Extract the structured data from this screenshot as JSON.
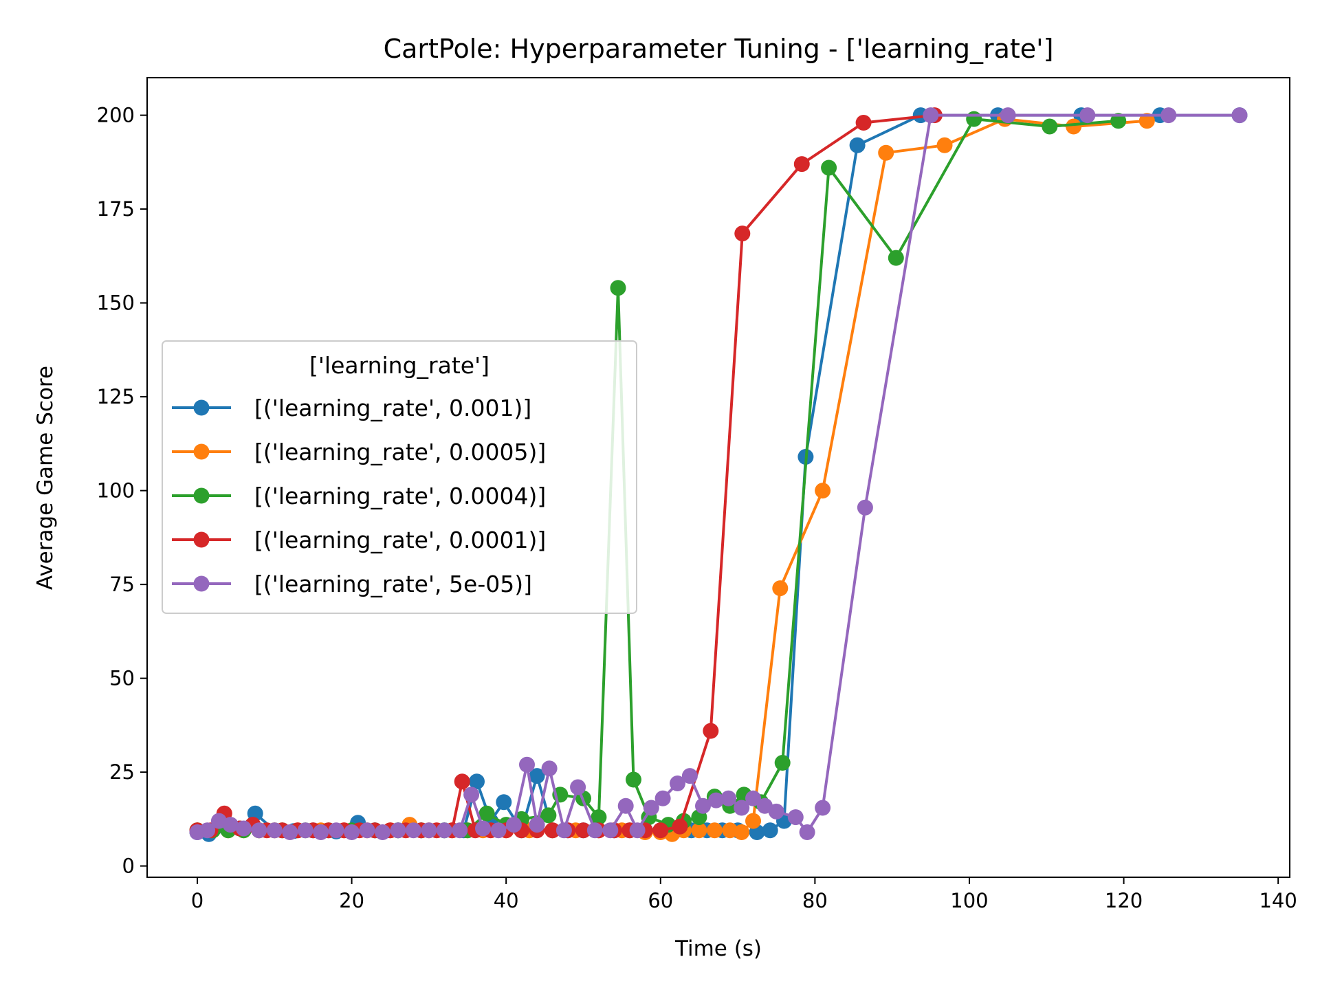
{
  "chart_data": {
    "type": "line",
    "title": "CartPole: Hyperparameter Tuning - ['learning_rate']",
    "xlabel": "Time (s)",
    "ylabel": "Average Game Score",
    "xlim": [
      -6.5,
      141.5
    ],
    "ylim": [
      -3,
      210
    ],
    "xticks": [
      0,
      20,
      40,
      60,
      80,
      100,
      120,
      140
    ],
    "yticks": [
      0,
      25,
      50,
      75,
      100,
      125,
      150,
      175,
      200
    ],
    "grid": false,
    "legend": {
      "title": "['learning_rate']",
      "placement": "center-left"
    },
    "series": [
      {
        "name": "[('learning_rate', 0.001)]",
        "color": "#1f77b4",
        "x": [
          0,
          1.5,
          3.5,
          5.5,
          7.5,
          10,
          12.5,
          15,
          18,
          20.8,
          23,
          26,
          29,
          32,
          34.5,
          36.2,
          38,
          39.7,
          42,
          44,
          46,
          48,
          50,
          52,
          54,
          56,
          58,
          60,
          62,
          64,
          66,
          68,
          70,
          72.5,
          74.2,
          76,
          78.8,
          85.5,
          93.7,
          103.7,
          114.5,
          124.7,
          135
        ],
        "y": [
          9,
          8.5,
          10.5,
          10,
          14,
          9.5,
          9.3,
          9.5,
          9.2,
          11.5,
          9.5,
          9.5,
          9.5,
          9.5,
          9.5,
          22.5,
          12,
          17,
          9.5,
          24,
          9.5,
          9.5,
          9.5,
          9.5,
          9.5,
          9.5,
          9.5,
          9.5,
          9.5,
          9.5,
          9.5,
          9.5,
          9.5,
          9,
          9.5,
          12,
          109,
          192,
          200,
          200,
          200,
          200,
          200
        ]
      },
      {
        "name": "[('learning_rate', 0.0005)]",
        "color": "#ff7f0e",
        "x": [
          0,
          2,
          4,
          6,
          8,
          10,
          13,
          16,
          19,
          22,
          25,
          27.5,
          30,
          33,
          35,
          37,
          40,
          43,
          46,
          49,
          52,
          55,
          58,
          60,
          61.5,
          63,
          65,
          67,
          69,
          70.5,
          72,
          75.5,
          81,
          89.2,
          96.8,
          104.6,
          113.5,
          123
        ],
        "y": [
          9.5,
          9.5,
          9.5,
          9.5,
          9.5,
          9.5,
          9.5,
          9.5,
          9.5,
          9.5,
          9.5,
          11,
          9.5,
          9.5,
          9.5,
          9.5,
          9.5,
          9.5,
          9.5,
          9.5,
          9.5,
          9.5,
          9,
          9,
          8.5,
          9.5,
          9.5,
          9.5,
          9.5,
          9,
          12,
          74,
          100,
          190,
          192,
          199,
          197,
          198.5
        ]
      },
      {
        "name": "[('learning_rate', 0.0004)]",
        "color": "#2ca02c",
        "x": [
          0,
          2,
          4,
          6,
          8,
          11,
          14,
          17,
          20,
          23,
          26,
          29,
          32,
          35,
          37.5,
          40,
          42,
          45.5,
          47,
          50,
          52,
          54.5,
          56.5,
          58.5,
          61,
          63,
          65,
          67,
          69,
          70.8,
          73,
          75.8,
          81.8,
          90.5,
          100.6,
          110.4,
          119.3
        ],
        "y": [
          9.5,
          9.5,
          9.5,
          9.5,
          9.5,
          9.5,
          9.5,
          9.5,
          9.5,
          9.5,
          9.5,
          9.5,
          9.5,
          9.5,
          14,
          11,
          12.5,
          13.5,
          19,
          18,
          13,
          154,
          23,
          13,
          11,
          12,
          13,
          18.5,
          16,
          19,
          17,
          27.5,
          186,
          162,
          199,
          197,
          198.5
        ]
      },
      {
        "name": "[('learning_rate', 0.0001)]",
        "color": "#d62728",
        "x": [
          0,
          1.7,
          3.5,
          5.5,
          7.2,
          9,
          11,
          13,
          15,
          17,
          19,
          21,
          23,
          25,
          27,
          29,
          31,
          33,
          34.3,
          36,
          38,
          40,
          42,
          44,
          46,
          48,
          50,
          52,
          54,
          56,
          58,
          60,
          62.5,
          66.5,
          70.6,
          78.3,
          86.3,
          95.5
        ],
        "y": [
          9.5,
          9.5,
          14,
          10,
          11,
          9.5,
          9.5,
          9.5,
          9.5,
          9.5,
          9.5,
          9.5,
          9.5,
          9.5,
          9.5,
          9.5,
          9.5,
          9.5,
          22.5,
          9.5,
          9.5,
          9.5,
          9.5,
          9.5,
          9.5,
          9.5,
          9.5,
          9.5,
          9.5,
          9.5,
          9.5,
          9.5,
          10.5,
          36,
          168.5,
          187,
          198,
          200
        ]
      },
      {
        "name": "[('learning_rate', 5e-05)]",
        "color": "#9467bd",
        "x": [
          0,
          1.3,
          2.8,
          4.3,
          6,
          8,
          10,
          12,
          14,
          16,
          18,
          20,
          22,
          24,
          26,
          28,
          30,
          32,
          34,
          35.5,
          37,
          39,
          41,
          42.7,
          44,
          45.6,
          47.5,
          49.3,
          51.5,
          53.5,
          55.5,
          57,
          58.8,
          60.3,
          62.2,
          63.8,
          65.5,
          67.2,
          68.8,
          70.5,
          72,
          73.5,
          75,
          77.5,
          79,
          81,
          86.5,
          95,
          105,
          115.3,
          125.8,
          135
        ],
        "y": [
          9,
          9.5,
          12,
          11,
          10,
          9.5,
          9.5,
          9,
          9.5,
          9,
          9.5,
          9,
          9.5,
          9,
          9.5,
          9.5,
          9.5,
          9.5,
          9.5,
          19,
          10,
          9.5,
          11,
          27,
          11,
          26,
          9.5,
          21,
          9.5,
          9.5,
          16,
          9.5,
          15.5,
          18,
          22,
          24,
          16,
          17.5,
          18,
          15.5,
          18,
          16,
          14.5,
          13,
          9,
          15.5,
          95.5,
          200,
          200,
          200,
          200,
          200
        ]
      }
    ]
  }
}
